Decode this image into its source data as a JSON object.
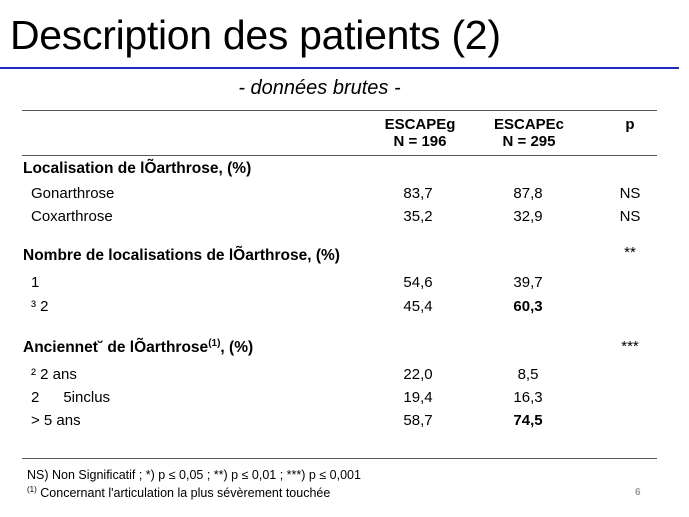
{
  "title": "Description des patients (2)",
  "subtitle": "- données brutes -",
  "columns": [
    {
      "name": "ESCAPEg",
      "n": "N = 196"
    },
    {
      "name": "ESCAPEc",
      "n": "N = 295"
    },
    {
      "name": "p",
      "n": ""
    }
  ],
  "sections": [
    {
      "label": "Localisation de lÕarthrose, (%)",
      "sup": "",
      "p": "",
      "rows": [
        {
          "label": "Gonarthrose",
          "v1": "83,7",
          "v2": "87,8",
          "p": "NS",
          "bold2": false
        },
        {
          "label": "Coxarthrose",
          "v1": "35,2",
          "v2": "32,9",
          "p": "NS",
          "bold2": false
        }
      ]
    },
    {
      "label": "Nombre de localisations de lÕarthrose, (%)",
      "sup": "",
      "p": "**",
      "rows": [
        {
          "label": "1",
          "v1": "54,6",
          "v2": "39,7",
          "p": "",
          "bold2": false
        },
        {
          "label": "³ 2",
          "v1": "45,4",
          "v2": "60,3",
          "p": "",
          "bold2": true
        }
      ]
    },
    {
      "label_a": "Anciennet˘ de lÕarthrose",
      "sup": "(1)",
      "label_b": ", (%)",
      "p": "***",
      "rows": [
        {
          "label": "² 2 ans",
          "v1": "22,0",
          "v2": "8,5",
          "p": "",
          "bold2": false
        },
        {
          "label_a": "2",
          "label_b": "5inclus",
          "v1": "19,4",
          "v2": "16,3",
          "p": "",
          "bold2": false
        },
        {
          "label": "> 5 ans",
          "v1": "58,7",
          "v2": "74,5",
          "p": "",
          "bold2": true
        }
      ]
    }
  ],
  "footnotes": {
    "ns": "NS) Non Significatif ; *) p ≤ 0,05 ; **) p ≤ 0,01 ; ***) p ≤ 0,001",
    "note_marker": "(1)",
    "note_text": "Concernant l'articulation la plus sévèrement touchée"
  },
  "page_number": "6",
  "colors": {
    "title_rule": "#1f2bbf",
    "page_number": "#999999"
  }
}
